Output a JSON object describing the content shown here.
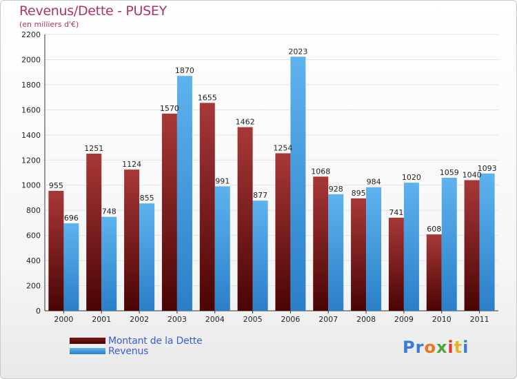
{
  "title": "Revenus/Dette - PUSEY",
  "subtitle": "(en milliers d'€)",
  "logo": {
    "text": "Proxiti",
    "colors": [
      "#3a7dd8",
      "#3a7dd8",
      "#e8741c",
      "#4aa83a",
      "#e33b2c",
      "#e8b41c",
      "#3a7dd8"
    ]
  },
  "colors": {
    "dette_dark": "#5a0606",
    "dette_light": "#a83838",
    "revenus_dark": "#2f8ad6",
    "revenus_light": "#5db3ee",
    "title": "#b0306a",
    "legend_text": "#3b5bdb"
  },
  "legend": [
    {
      "label": "Montant de la Dette",
      "color": "#6b1010"
    },
    {
      "label": "Revenus",
      "color": "#4aa3e6"
    }
  ],
  "chart_data": {
    "type": "bar",
    "title": "Revenus/Dette - PUSEY",
    "ylabel": "(en milliers d'€)",
    "categories": [
      "2000",
      "2001",
      "2002",
      "2003",
      "2004",
      "2005",
      "2006",
      "2007",
      "2008",
      "2009",
      "2010",
      "2011"
    ],
    "series": [
      {
        "name": "Montant de la Dette",
        "values": [
          955,
          1251,
          1124,
          1570,
          1655,
          1462,
          1254,
          1068,
          895,
          741,
          608,
          1040
        ]
      },
      {
        "name": "Revenus",
        "values": [
          696,
          748,
          855,
          1870,
          991,
          877,
          2023,
          928,
          984,
          1020,
          1059,
          1093
        ]
      }
    ],
    "ylim": [
      0,
      2200
    ],
    "yticks": [
      0,
      200,
      400,
      600,
      800,
      1000,
      1200,
      1400,
      1600,
      1800,
      2000,
      2200
    ],
    "grid": true
  }
}
